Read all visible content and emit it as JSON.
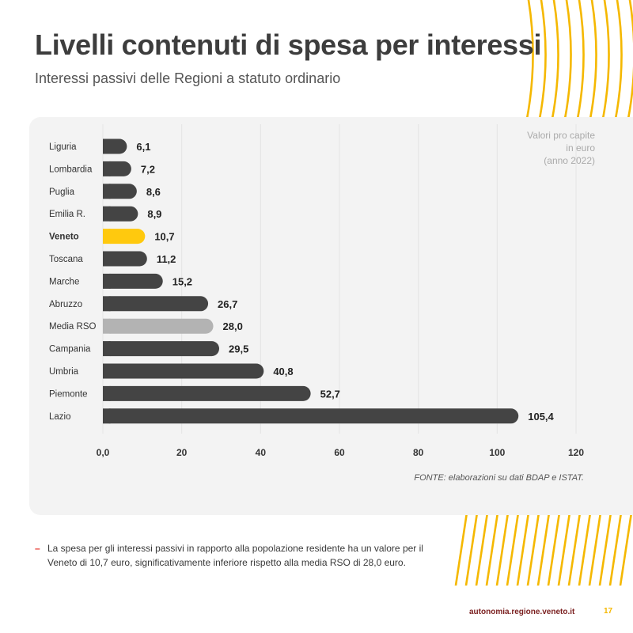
{
  "header": {
    "title": "Livelli contenuti di spesa per interessi",
    "subtitle": "Interessi passivi delle Regioni a statuto ordinario"
  },
  "note": {
    "line1": "Valori pro capite",
    "line2": "in euro",
    "line3": "(anno 2022)"
  },
  "source": "FONTE: elaborazioni su dati BDAP e ISTAT.",
  "bullet_text": "La spesa per gli interessi passivi in rapporto alla popolazione residente ha un valore per il Veneto di 10,7 euro, significativamente inferiore rispetto alla media RSO di 28,0 euro.",
  "footer": {
    "url": "autonomia.regione.veneto.it",
    "page": "17"
  },
  "colors": {
    "bar_default": "#444444",
    "bar_highlight": "#ffc90e",
    "bar_average": "#b3b3b3",
    "accent_yellow": "#f5b800"
  },
  "chart_data": {
    "type": "bar",
    "orientation": "horizontal",
    "title": "Livelli contenuti di spesa per interessi",
    "xlabel": "",
    "ylabel": "",
    "xlim": [
      0,
      120
    ],
    "xticks": [
      {
        "value": 0,
        "label": "0,0"
      },
      {
        "value": 20,
        "label": "20"
      },
      {
        "value": 40,
        "label": "40"
      },
      {
        "value": 60,
        "label": "60"
      },
      {
        "value": 80,
        "label": "80"
      },
      {
        "value": 100,
        "label": "100"
      },
      {
        "value": 120,
        "label": "120"
      }
    ],
    "grid": true,
    "categories": [
      "Liguria",
      "Lombardia",
      "Puglia",
      "Emilia R.",
      "Veneto",
      "Toscana",
      "Marche",
      "Abruzzo",
      "Media RSO",
      "Campania",
      "Umbria",
      "Piemonte",
      "Lazio"
    ],
    "values": [
      6.1,
      7.2,
      8.6,
      8.9,
      10.7,
      11.2,
      15.2,
      26.7,
      28.0,
      29.5,
      40.8,
      52.7,
      105.4
    ],
    "value_labels": [
      "6,1",
      "7,2",
      "8,6",
      "8,9",
      "10,7",
      "11,2",
      "15,2",
      "26,7",
      "28,0",
      "29,5",
      "40,8",
      "52,7",
      "105,4"
    ],
    "highlight": {
      "Veneto": "highlight",
      "Media RSO": "average"
    }
  }
}
